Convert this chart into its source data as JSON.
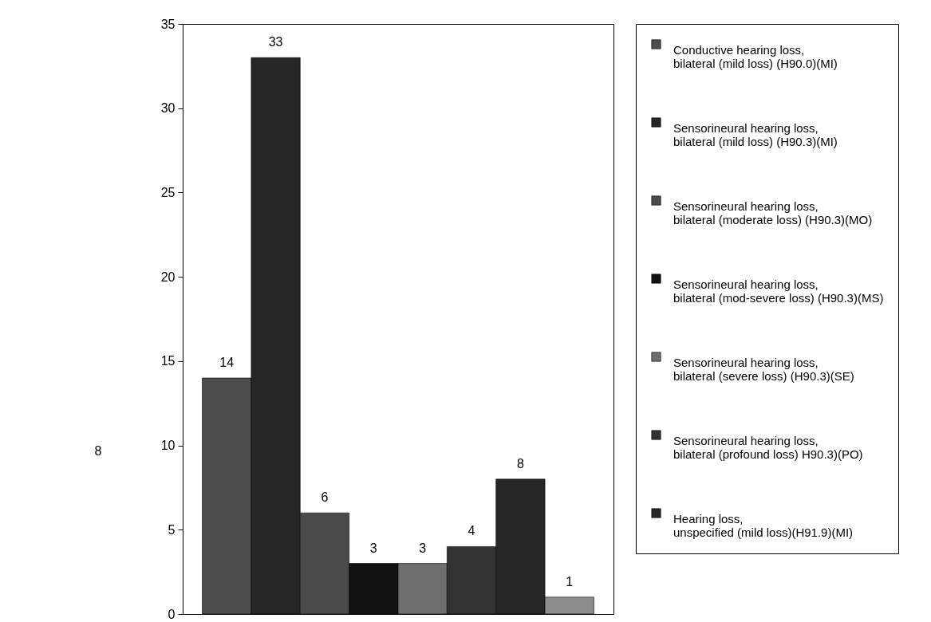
{
  "chart_data": {
    "type": "bar",
    "categories": [
      null,
      null,
      null,
      null,
      null,
      null,
      null,
      null
    ],
    "series": [
      {
        "name": "Conductive hearing loss, bilateral (mild loss) (H90.0)(MI)",
        "color": "#4d4d4d",
        "values": [
          14,
          null,
          null,
          null,
          null,
          null,
          null,
          null
        ]
      },
      {
        "name": "Sensorineural hearing loss, bilateral (mild loss) (H90.3)(MI)",
        "color": "#262626",
        "values": [
          null,
          33,
          null,
          null,
          null,
          null,
          null,
          null
        ]
      },
      {
        "name": "Sensorineural hearing loss, bilateral (moderate loss) (H90.3)(MO)",
        "color": "#4a4a4a",
        "values": [
          null,
          null,
          6,
          null,
          null,
          null,
          null,
          null
        ]
      },
      {
        "name": "Sensorineural hearing loss, bilateral (mod-severe loss) (H90.3)(MS)",
        "color": "#111111",
        "values": [
          null,
          null,
          null,
          3,
          null,
          null,
          null,
          null
        ]
      },
      {
        "name": "Sensorineural hearing loss, bilateral (severe loss) (H90.3)(SE)",
        "color": "#6e6e6e",
        "values": [
          null,
          null,
          null,
          null,
          3,
          null,
          null,
          null
        ]
      },
      {
        "name": "Sensorineural hearing loss, bilateral (profound loss) H90.3)(PO)",
        "color": "#333333",
        "values": [
          null,
          null,
          null,
          null,
          null,
          4,
          null,
          null
        ]
      },
      {
        "name": "Hearing loss, unspecified (mild loss)(H91.9)(MI)",
        "color": "#262626",
        "values": [
          null,
          null,
          null,
          null,
          null,
          null,
          8,
          null
        ]
      },
      {
        "color": "#8c8c8c",
        "values": [
          null,
          null,
          null,
          null,
          null,
          null,
          null,
          1
        ]
      }
    ],
    "ylim": [
      0,
      35
    ],
    "yticks": [
      0,
      5,
      10,
      15,
      20,
      25,
      30,
      35
    ],
    "stacked": true,
    "grid": false,
    "legend": "right",
    "data_labels": true,
    "tick_labels": "y",
    "annotations": [
      "8"
    ]
  }
}
